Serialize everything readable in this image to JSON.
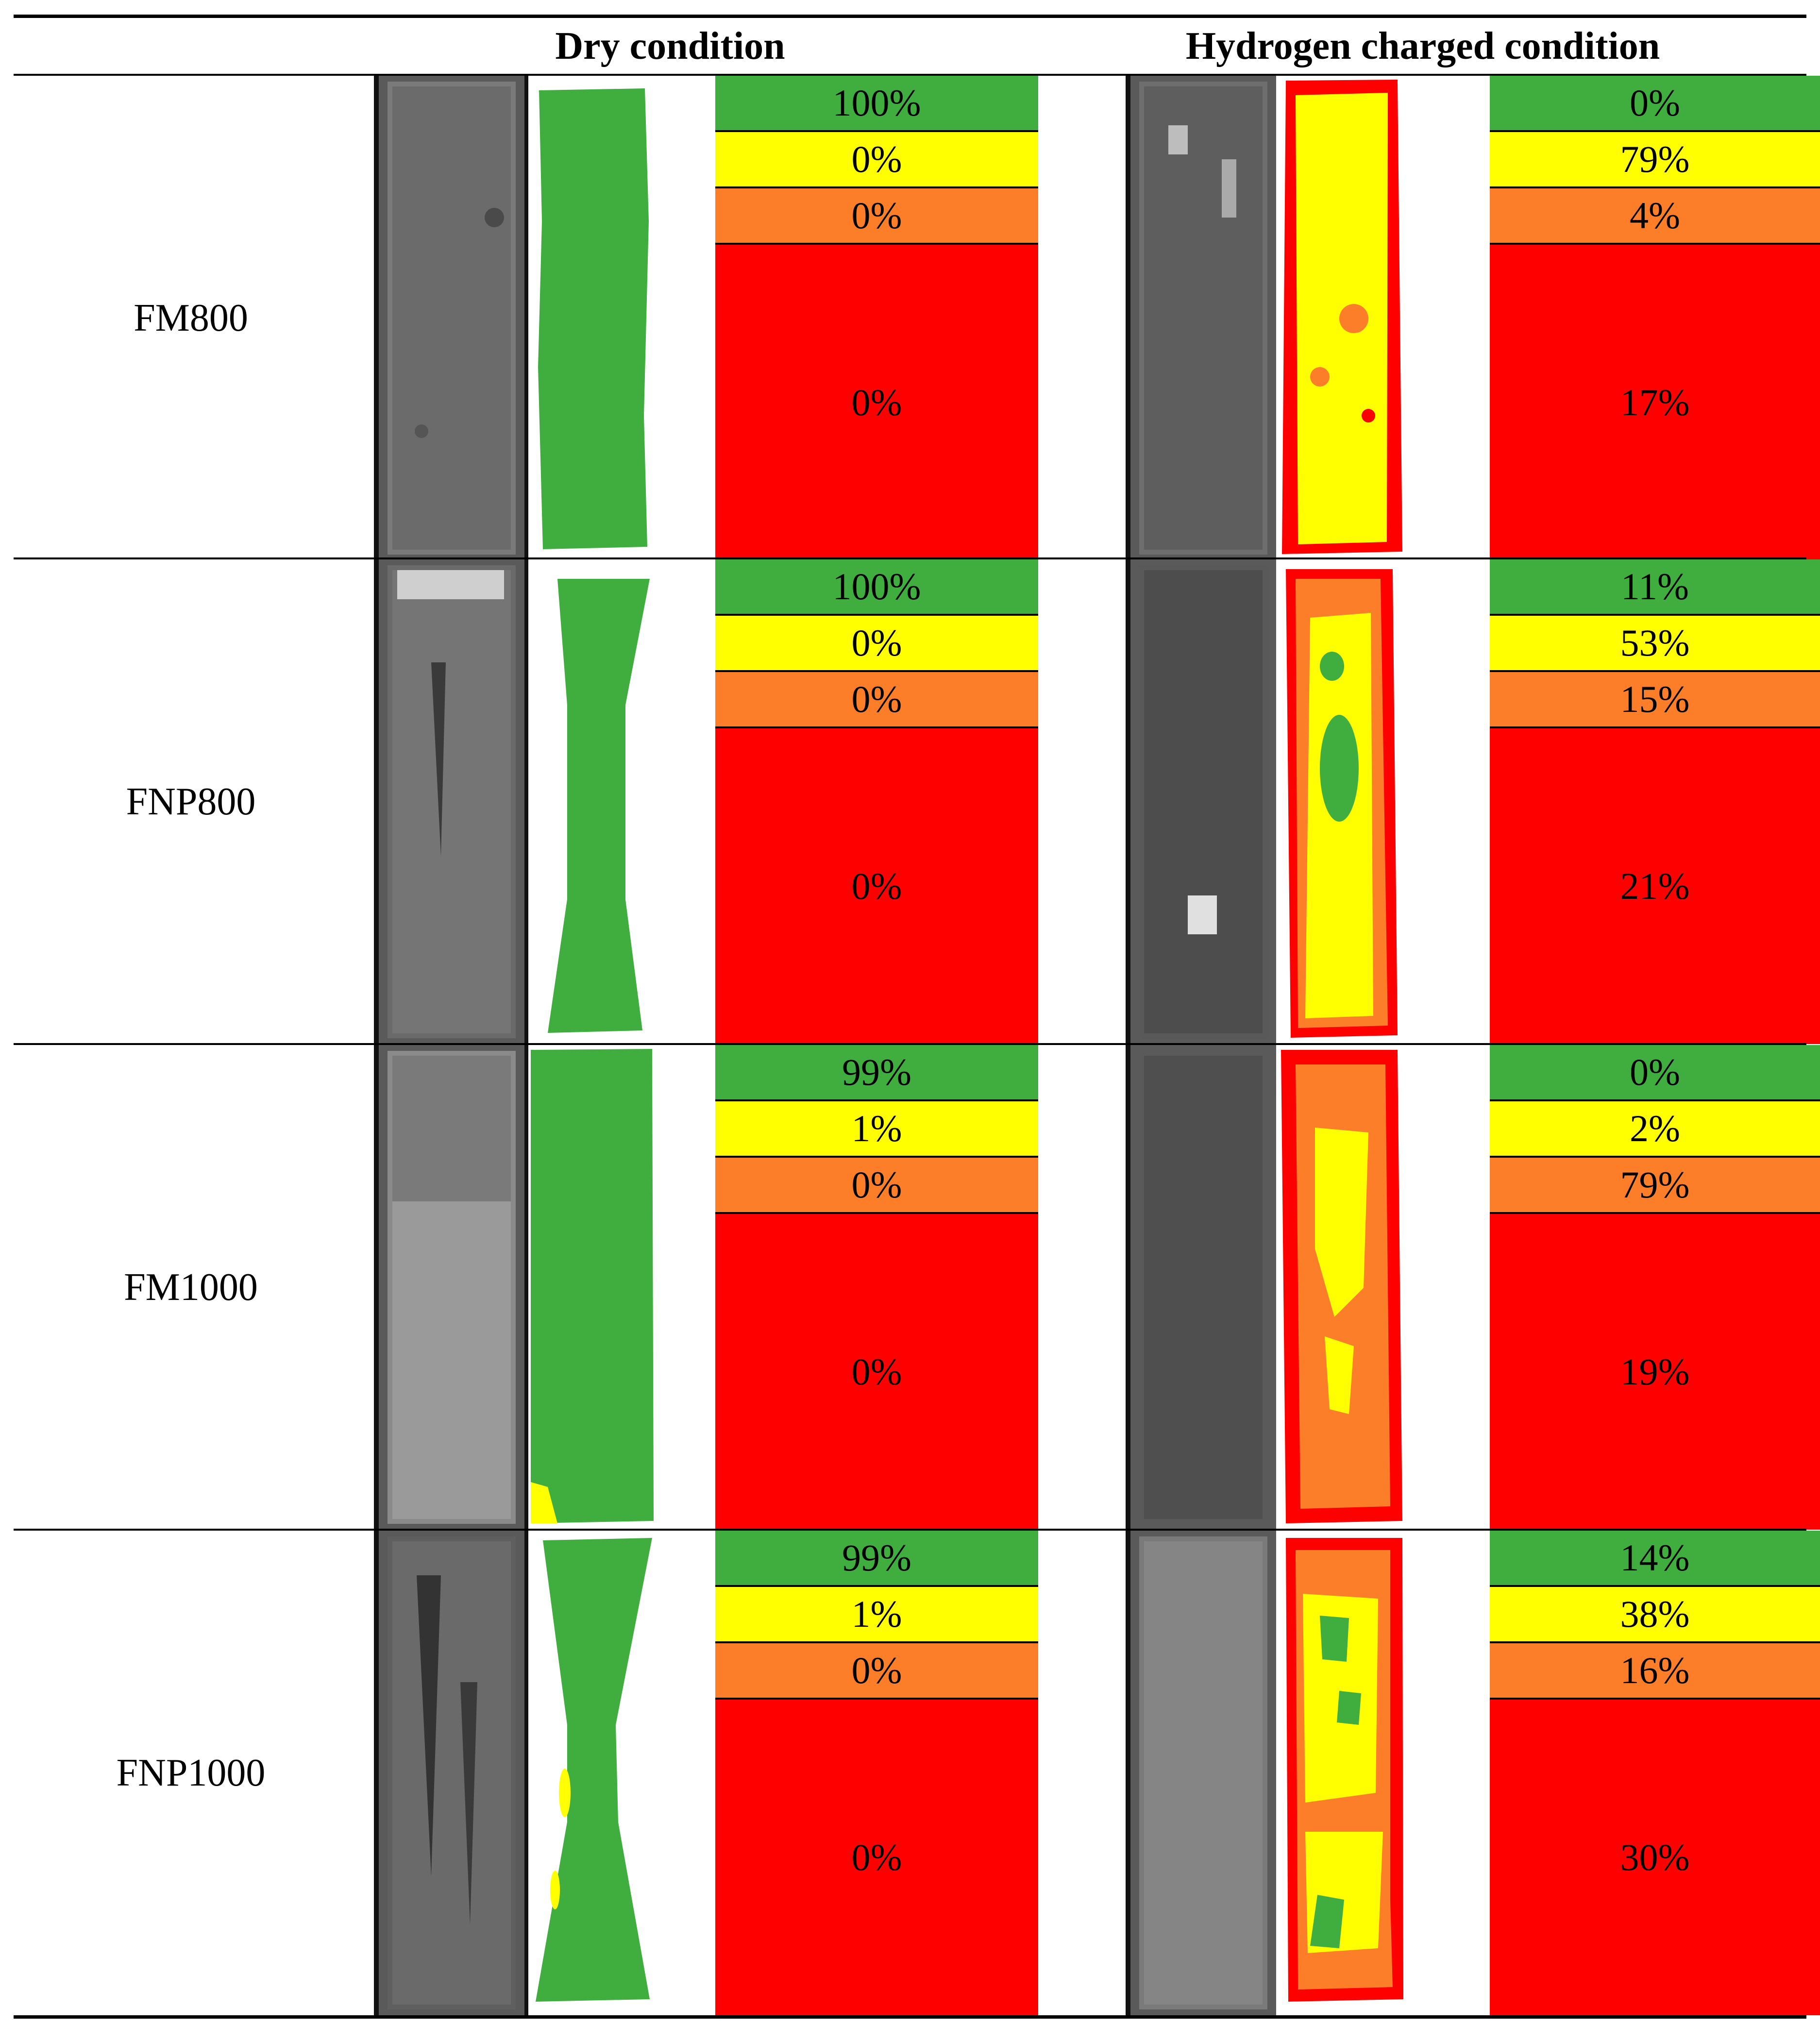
{
  "header": {
    "dry": "Dry condition",
    "hydrogen": "Hydrogen charged condition"
  },
  "colors": {
    "green": "#3fae3f",
    "yellow": "#ffff00",
    "orange": "#fc7e28",
    "red": "#ff0000"
  },
  "legend_order": [
    "green",
    "yellow",
    "orange",
    "red"
  ],
  "rows": [
    {
      "label": "FM800",
      "dry": {
        "values": [
          "100%",
          "0%",
          "0%",
          "0%"
        ]
      },
      "hydrogen": {
        "values": [
          "0%",
          "79%",
          "4%",
          "17%"
        ]
      }
    },
    {
      "label": "FNP800",
      "dry": {
        "values": [
          "100%",
          "0%",
          "0%",
          "0%"
        ]
      },
      "hydrogen": {
        "values": [
          "11%",
          "53%",
          "15%",
          "21%"
        ]
      }
    },
    {
      "label": "FM1000",
      "dry": {
        "values": [
          "99%",
          "1%",
          "0%",
          "0%"
        ]
      },
      "hydrogen": {
        "values": [
          "0%",
          "2%",
          "79%",
          "19%"
        ]
      }
    },
    {
      "label": "FNP1000",
      "dry": {
        "values": [
          "99%",
          "1%",
          "0%",
          "0%"
        ]
      },
      "hydrogen": {
        "values": [
          "14%",
          "38%",
          "16%",
          "30%"
        ]
      }
    }
  ]
}
